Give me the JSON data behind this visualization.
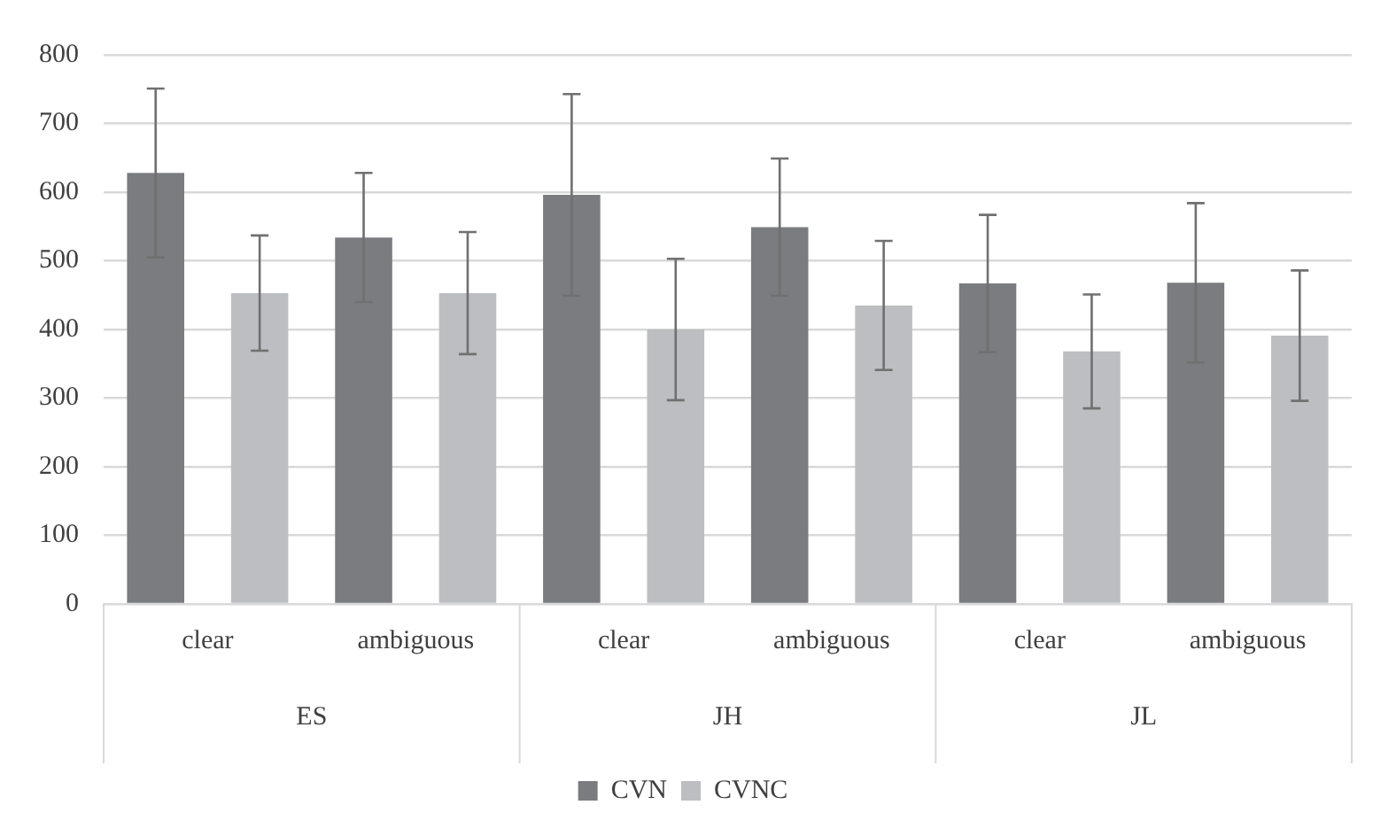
{
  "chart_data": {
    "type": "bar",
    "categories": [
      "clear",
      "ambiguous",
      "clear",
      "ambiguous",
      "clear",
      "ambiguous"
    ],
    "annotations": [
      "ES",
      "JH",
      "JL"
    ],
    "series": [
      {
        "name": "CVN",
        "color": "#7b7c80",
        "values": [
          628,
          534,
          596,
          549,
          467,
          468
        ],
        "errors": [
          123,
          94,
          147,
          100,
          100,
          116
        ]
      },
      {
        "name": "CVNC",
        "color": "#bdbec2",
        "values": [
          453,
          453,
          400,
          435,
          368,
          391
        ],
        "errors": [
          84,
          89,
          103,
          94,
          83,
          95
        ]
      }
    ],
    "ylim": [
      0,
      800
    ],
    "yticks": [
      0,
      100,
      200,
      300,
      400,
      500,
      600,
      700,
      800
    ],
    "grid": "y",
    "legend": "bottom"
  }
}
